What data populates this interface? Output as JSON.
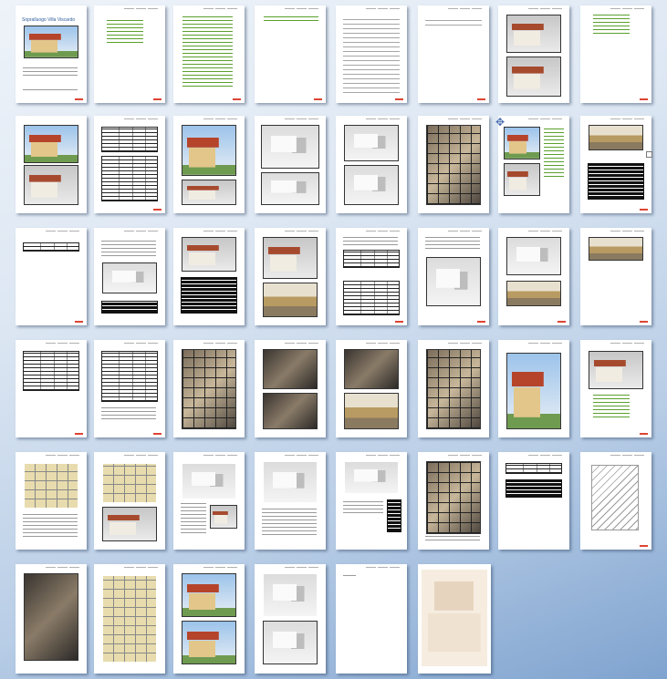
{
  "document": {
    "cover_title": "Sopralluogo Villa Viscardo",
    "total_pages": 46
  },
  "icons": {
    "move_cursor": "move-icon",
    "resize_handle": "resize-handle-icon"
  }
}
